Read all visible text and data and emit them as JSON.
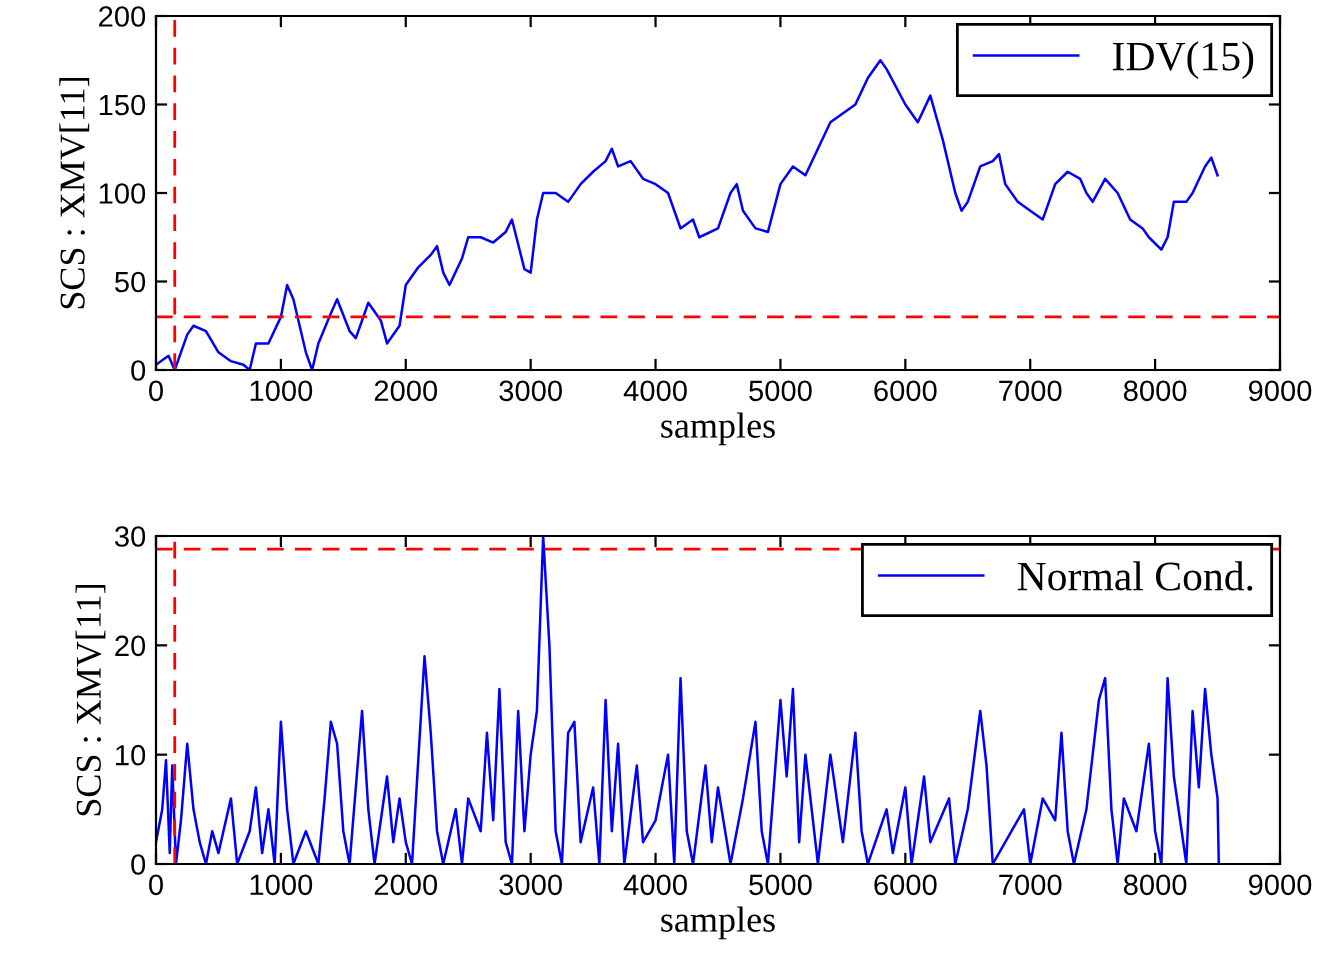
{
  "chart_data": [
    {
      "type": "line",
      "xlabel": "samples",
      "ylabel": "SCS : XMV[11]",
      "xlim": [
        0,
        9000
      ],
      "xticks": [
        0,
        1000,
        2000,
        3000,
        4000,
        5000,
        6000,
        7000,
        8000,
        9000
      ],
      "ylim": [
        0,
        200
      ],
      "yticks": [
        0,
        50,
        100,
        150,
        200
      ],
      "grid": false,
      "legend": "top right",
      "line_style": "solid",
      "marker": "none",
      "series": [
        {
          "name": "IDV(15)",
          "color": "#0000ff",
          "x": [
            0,
            100,
            150,
            250,
            300,
            400,
            500,
            600,
            700,
            750,
            800,
            900,
            1000,
            1050,
            1100,
            1200,
            1250,
            1300,
            1400,
            1450,
            1550,
            1600,
            1700,
            1800,
            1850,
            1950,
            2000,
            2100,
            2200,
            2250,
            2300,
            2350,
            2450,
            2500,
            2600,
            2700,
            2800,
            2850,
            2950,
            3000,
            3050,
            3100,
            3200,
            3300,
            3400,
            3500,
            3600,
            3650,
            3700,
            3800,
            3900,
            4000,
            4100,
            4200,
            4300,
            4350,
            4500,
            4600,
            4650,
            4700,
            4800,
            4900,
            5000,
            5100,
            5200,
            5300,
            5400,
            5600,
            5700,
            5800,
            5850,
            6000,
            6100,
            6200,
            6300,
            6400,
            6450,
            6500,
            6600,
            6700,
            6750,
            6800,
            6900,
            7000,
            7100,
            7200,
            7300,
            7400,
            7450,
            7500,
            7600,
            7700,
            7800,
            7900,
            7950,
            8050,
            8100,
            8150,
            8250,
            8300,
            8400,
            8450,
            8500
          ],
          "values": [
            3,
            8,
            0,
            20,
            25,
            22,
            10,
            5,
            3,
            0,
            15,
            15,
            30,
            48,
            40,
            10,
            0,
            15,
            32,
            40,
            22,
            18,
            38,
            28,
            15,
            25,
            48,
            58,
            65,
            70,
            55,
            48,
            63,
            75,
            75,
            72,
            78,
            85,
            57,
            55,
            85,
            100,
            100,
            95,
            105,
            112,
            118,
            125,
            115,
            118,
            108,
            105,
            100,
            80,
            85,
            75,
            80,
            100,
            105,
            90,
            80,
            78,
            105,
            115,
            110,
            125,
            140,
            150,
            165,
            175,
            170,
            150,
            140,
            155,
            130,
            100,
            90,
            95,
            115,
            118,
            122,
            105,
            95,
            90,
            85,
            105,
            112,
            108,
            100,
            95,
            108,
            100,
            85,
            80,
            75,
            68,
            75,
            95,
            95,
            100,
            115,
            120,
            110
          ]
        }
      ],
      "ref_lines": [
        {
          "axis": "y",
          "value": 30,
          "color": "#ff0000",
          "line_style": "dashed"
        },
        {
          "axis": "x",
          "value": 150,
          "color": "#ff0000",
          "line_style": "dashed"
        }
      ]
    },
    {
      "type": "line",
      "xlabel": "samples",
      "ylabel": "SCS : XMV[11]",
      "xlim": [
        0,
        9000
      ],
      "xticks": [
        0,
        1000,
        2000,
        3000,
        4000,
        5000,
        6000,
        7000,
        8000,
        9000
      ],
      "ylim": [
        0,
        30
      ],
      "yticks": [
        0,
        10,
        20,
        30
      ],
      "grid": false,
      "legend": "top right",
      "line_style": "solid",
      "marker": "none",
      "series": [
        {
          "name": "Normal Cond.",
          "color": "#0000ff",
          "x": [
            0,
            50,
            80,
            110,
            130,
            160,
            200,
            250,
            300,
            350,
            400,
            450,
            500,
            600,
            650,
            750,
            800,
            850,
            900,
            950,
            1000,
            1050,
            1100,
            1200,
            1300,
            1350,
            1400,
            1450,
            1500,
            1550,
            1650,
            1700,
            1750,
            1850,
            1900,
            1950,
            2000,
            2050,
            2150,
            2200,
            2250,
            2300,
            2400,
            2450,
            2500,
            2600,
            2650,
            2700,
            2750,
            2800,
            2850,
            2900,
            2950,
            3000,
            3050,
            3100,
            3150,
            3200,
            3250,
            3300,
            3350,
            3400,
            3500,
            3550,
            3600,
            3650,
            3700,
            3750,
            3850,
            3900,
            4000,
            4100,
            4150,
            4200,
            4250,
            4300,
            4400,
            4450,
            4500,
            4600,
            4700,
            4800,
            4850,
            4900,
            5000,
            5050,
            5100,
            5150,
            5200,
            5300,
            5400,
            5500,
            5600,
            5650,
            5700,
            5850,
            5900,
            6000,
            6050,
            6150,
            6200,
            6350,
            6400,
            6500,
            6600,
            6650,
            6700,
            6850,
            6950,
            7000,
            7100,
            7200,
            7250,
            7300,
            7350,
            7450,
            7550,
            7600,
            7650,
            7700,
            7750,
            7850,
            7950,
            8000,
            8050,
            8100,
            8150,
            8200,
            8250,
            8300,
            8350,
            8400,
            8450,
            8500,
            8510
          ],
          "values": [
            2,
            5,
            9.5,
            1,
            9,
            0,
            4,
            11,
            5,
            2,
            0,
            3,
            1,
            6,
            0,
            3,
            7,
            1,
            5,
            0,
            13,
            5,
            0,
            3,
            0,
            6,
            13,
            11,
            3,
            0,
            14,
            5,
            0,
            8,
            2,
            6,
            2,
            0,
            19,
            12,
            3,
            0,
            5,
            0,
            6,
            3,
            12,
            4,
            16,
            2,
            0,
            14,
            3,
            10,
            14,
            30,
            20,
            3,
            0,
            12,
            13,
            2,
            7,
            0,
            15,
            3,
            11,
            0,
            9,
            2,
            4,
            10,
            0,
            17,
            3,
            0,
            9,
            2,
            7,
            0,
            6,
            13,
            3,
            0,
            15,
            8,
            16,
            2,
            10,
            0,
            10,
            2,
            12,
            3,
            0,
            5,
            1,
            7,
            0,
            8,
            2,
            6,
            0,
            5,
            14,
            9,
            0,
            3,
            5,
            0,
            6,
            4,
            12,
            3,
            0,
            5,
            15,
            17,
            5,
            0,
            6,
            3,
            11,
            3,
            0,
            17,
            8,
            4,
            0,
            14,
            7,
            16,
            10,
            6,
            0
          ]
        }
      ],
      "ref_lines": [
        {
          "axis": "y",
          "value": 28.8,
          "color": "#ff0000",
          "line_style": "dashed"
        },
        {
          "axis": "x",
          "value": 150,
          "color": "#ff0000",
          "line_style": "dashed"
        }
      ]
    }
  ]
}
